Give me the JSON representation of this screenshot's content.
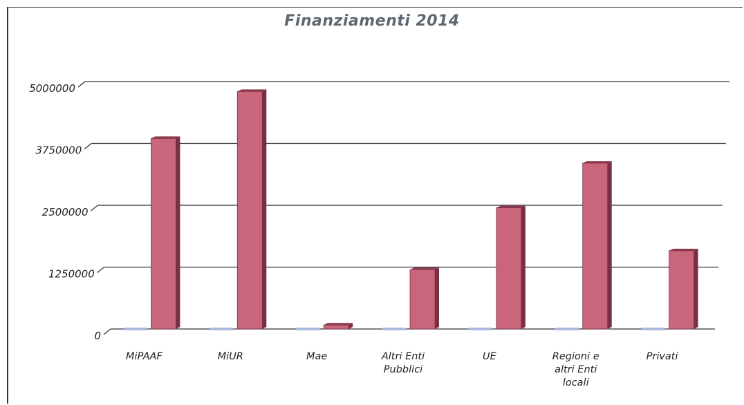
{
  "chart_data": {
    "type": "bar",
    "title": "Finanziamenti 2014",
    "xlabel": "",
    "ylabel": "",
    "categories": [
      [
        "MiPAAF"
      ],
      [
        "MiUR"
      ],
      [
        "Mae"
      ],
      [
        "Altri Enti",
        "Pubblici"
      ],
      [
        "UE"
      ],
      [
        "Regioni e",
        "altri Enti",
        "locali"
      ],
      [
        "Privati"
      ]
    ],
    "values": [
      3850000,
      4800000,
      80000,
      1200000,
      2450000,
      3350000,
      1580000
    ],
    "ylim": [
      0,
      5000000
    ],
    "yticks": [
      "0",
      "1250000",
      "2500000",
      "3750000",
      "5000000"
    ],
    "ytick_values": [
      0,
      1250000,
      2500000,
      3750000,
      5000000
    ],
    "grid": true,
    "colors": {
      "bar": "#c9667c",
      "bar_side": "#7a2f40",
      "base_marker": "#a9b9df",
      "grid": "#333333",
      "title": "#5e6670"
    }
  }
}
